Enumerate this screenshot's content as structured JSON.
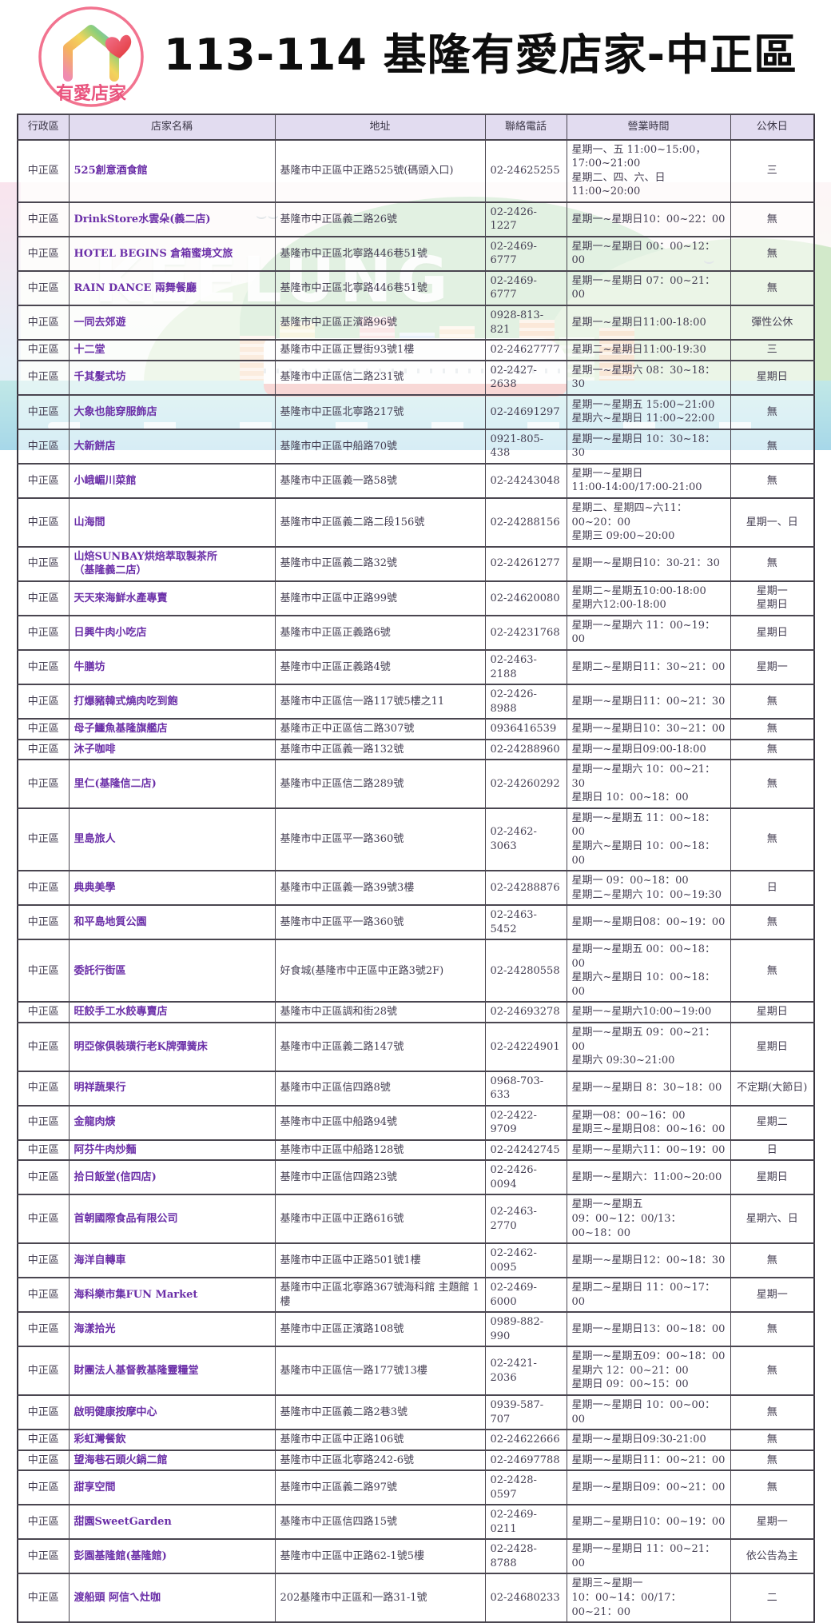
{
  "logo": {
    "text": "有愛店家"
  },
  "title": "113-114 基隆有愛店家-中正區",
  "art": {
    "watermark_text": "KEELUNG"
  },
  "colors": {
    "accent_purple": "#6b2fa8",
    "header_bg": "#e2dcf0",
    "logo_pink": "#ef5f84",
    "text_dark": "#443e52",
    "border_dark": "#4a4650"
  },
  "table": {
    "headers": [
      "行政區",
      "店家名稱",
      "地址",
      "聯絡電話",
      "營業時間",
      "公休日"
    ],
    "rows": [
      {
        "district": "中正區",
        "name": "525創意酒食館",
        "address": "基隆市中正區中正路525號(碼頭入口)",
        "phone": "02-24625255",
        "hours": "星期一、五 11:00~15:00，\n17:00~21:00\n星期二、四、六、日11:00~20:00",
        "closed": "三"
      },
      {
        "district": "中正區",
        "name": "DrinkStore水雲朵(義二店)",
        "address": "基隆市中正區義二路26號",
        "phone": "02-2426-1227",
        "hours": "星期一~星期日10：00~22：00",
        "closed": "無"
      },
      {
        "district": "中正區",
        "name": "HOTEL BEGINS 倉箱蜜境文旅",
        "address": "基隆市中正區北寧路446巷51號",
        "phone": "02-2469-6777",
        "hours": "星期一~星期日 00：00~12：00",
        "closed": "無"
      },
      {
        "district": "中正區",
        "name": "RAIN DANCE 兩舞餐廳",
        "address": "基隆市中正區北寧路446巷51號",
        "phone": "02-2469-6777",
        "hours": "星期一~星期日 07：00~21：00",
        "closed": "無"
      },
      {
        "district": "中正區",
        "name": "一同去郊遊",
        "address": "基隆市中正區正濱路96號",
        "phone": "0928-813-821",
        "hours": "星期一~星期日11:00-18:00",
        "closed": "彈性公休"
      },
      {
        "district": "中正區",
        "name": "十二堂",
        "address": "基隆市中正區正豐街93號1樓",
        "phone": "02-24627777",
        "hours": "星期二~星期日11:00-19:30",
        "closed": "三"
      },
      {
        "district": "中正區",
        "name": "千其髮式坊",
        "address": "基隆市中正區信二路231號",
        "phone": "02-2427-2638",
        "hours": "星期一~星期六 08：30~18：30",
        "closed": "星期日"
      },
      {
        "district": "中正區",
        "name": "大象也能穿服飾店",
        "address": "基隆市中正區北寧路217號",
        "phone": "02-24691297",
        "hours": "星期一~星期五 15:00~21:00\n星期六~星期日 11:00~22:00",
        "closed": "無"
      },
      {
        "district": "中正區",
        "name": "大新餅店",
        "address": "基隆市中正區中船路70號",
        "phone": "0921-805-438",
        "hours": "星期一~星期日 10：30~18：30",
        "closed": "無"
      },
      {
        "district": "中正區",
        "name": "小峨嵋川菜館",
        "address": "基隆市中正區義一路58號",
        "phone": "02-24243048",
        "hours": "星期一~星期日\n11:00-14:00/17:00-21:00",
        "closed": "無"
      },
      {
        "district": "中正區",
        "name": "山海間",
        "address": "基隆市中正區義二路二段156號",
        "phone": "02-24288156",
        "hours": "星期二、星期四~六11：00~20：00\n星期三 09:00~20:00",
        "closed": "星期一、日"
      },
      {
        "district": "中正區",
        "name": "山焙SUNBAY烘焙萃取製茶所\n（基隆義二店）",
        "address": "基隆市中正區義二路32號",
        "phone": "02-24261277",
        "hours": "星期一~星期日10：30-21：30",
        "closed": "無"
      },
      {
        "district": "中正區",
        "name": "天天來海鮮水產專賣",
        "address": "基隆市中正區中正路99號",
        "phone": "02-24620080",
        "hours": "星期二~星期五10:00-18:00\n星期六12:00-18:00",
        "closed": "星期一\n星期日"
      },
      {
        "district": "中正區",
        "name": "日興牛肉小吃店",
        "address": "基隆市中正區正義路6號",
        "phone": "02-24231768",
        "hours": "星期一~星期六 11：00~19：00",
        "closed": "星期日"
      },
      {
        "district": "中正區",
        "name": "牛膳坊",
        "address": "基隆市中正區正義路4號",
        "phone": "02-2463-2188",
        "hours": "星期二~星期日11：30~21：00",
        "closed": "星期一"
      },
      {
        "district": "中正區",
        "name": "打爆豬韓式燒肉吃到飽",
        "address": "基隆市中正區信一路117號5樓之11",
        "phone": "02-2426-8988",
        "hours": "星期一~星期日11：00~21：30",
        "closed": "無"
      },
      {
        "district": "中正區",
        "name": "母子鱷魚基隆旗艦店",
        "address": "基隆市正中正區信二路307號",
        "phone": "0936416539",
        "hours": "星期一~星期日10：30~21：00",
        "closed": "無"
      },
      {
        "district": "中正區",
        "name": "沐子咖啡",
        "address": "基隆市中正區義一路132號",
        "phone": "02-24288960",
        "hours": "星期一~星期日09:00-18:00",
        "closed": "無"
      },
      {
        "district": "中正區",
        "name": "里仁(基隆信二店)",
        "address": "基隆市中正區信二路289號",
        "phone": "02-24260292",
        "hours": "星期一~星期六 10：00~21：30\n星期日 10：00~18：00",
        "closed": "無"
      },
      {
        "district": "中正區",
        "name": "里島旅人",
        "address": "基隆市中正區平一路360號",
        "phone": "02-2462-3063",
        "hours": "星期一~星期五 11：00~18：00\n星期六~星期日 10：00~18：00",
        "closed": "無"
      },
      {
        "district": "中正區",
        "name": "典典美學",
        "address": "基隆市中正區義一路39號3樓",
        "phone": "02-24288876",
        "hours": "星期一 09：00~18：00\n星期二~星期六 10：00~19:30",
        "closed": "日"
      },
      {
        "district": "中正區",
        "name": "和平島地質公園",
        "address": "基隆市中正區平一路360號",
        "phone": "02-2463-5452",
        "hours": "星期一~星期日08：00~19：00",
        "closed": "無"
      },
      {
        "district": "中正區",
        "name": "委託行街區",
        "address": "好食城(基隆市中正區中正路3號2F)",
        "phone": "02-24280558",
        "hours": "星期一~星期五 00：00~18：00\n星期六~星期日 10：00~18：00",
        "closed": "無"
      },
      {
        "district": "中正區",
        "name": "旺餃手工水餃專賣店",
        "address": "基隆市中正區調和街28號",
        "phone": "02-24693278",
        "hours": "星期一~星期六10:00~19:00",
        "closed": "星期日"
      },
      {
        "district": "中正區",
        "name": "明亞傢俱裝璜行老K牌彈簧床",
        "address": "基隆市中正區義二路147號",
        "phone": "02-24224901",
        "hours": "星期一~星期五 09：00~21：00\n星期六 09:30~21:00",
        "closed": "星期日"
      },
      {
        "district": "中正區",
        "name": "明祥蔬果行",
        "address": "基隆市中正區信四路8號",
        "phone": "0968-703-633",
        "hours": "星期一~星期日 8：30~18：00",
        "closed": "不定期(大節日)"
      },
      {
        "district": "中正區",
        "name": "金龍肉焿",
        "address": "基隆市中正區中船路94號",
        "phone": "02-2422-9709",
        "hours": "星期一08：00~16：00\n星期三~星期日08：00~16：00",
        "closed": "星期二"
      },
      {
        "district": "中正區",
        "name": "阿芬牛肉炒麵",
        "address": "基隆市中正區中船路128號",
        "phone": "02-24242745",
        "hours": "星期一~星期六11：00~19：00",
        "closed": "日"
      },
      {
        "district": "中正區",
        "name": "拾日飯堂(信四店)",
        "address": "基隆市中正區信四路23號",
        "phone": "02-2426-0094",
        "hours": "星期一~星期六：11:00~20:00",
        "closed": "星期日"
      },
      {
        "district": "中正區",
        "name": "首朝國際食品有限公司",
        "address": "基隆市中正區中正路616號",
        "phone": "02-2463-2770",
        "hours": "星期一~星期五\n09：00~12：00/13：00~18：00",
        "closed": "星期六、日"
      },
      {
        "district": "中正區",
        "name": "海洋自轉車",
        "address": "基隆市中正區中正路501號1樓",
        "phone": "02-2462-0095",
        "hours": "星期一~星期日12：00~18：30",
        "closed": "無"
      },
      {
        "district": "中正區",
        "name": "海科樂市集FUN Market",
        "address": "基隆市中正區北寧路367號海科館 主題館 1樓",
        "phone": "02-2469-6000",
        "hours": "星期二~星期日 11：00~17：00",
        "closed": "星期一"
      },
      {
        "district": "中正區",
        "name": "海漾拾光",
        "address": "基隆市中正區正濱路108號",
        "phone": "0989-882-990",
        "hours": "星期一~星期日13：00~18：00",
        "closed": "無"
      },
      {
        "district": "中正區",
        "name": "財團法人基督教基隆靈糧堂",
        "address": "基隆市中正區信一路177號13樓",
        "phone": "02-2421-2036",
        "hours": "星期一~星期五09：00~18：00\n星期六 12：00~21：00\n星期日 09：00~15：00",
        "closed": "無"
      },
      {
        "district": "中正區",
        "name": "啟明健康按摩中心",
        "address": "基隆市中正區義二路2巷3號",
        "phone": "0939-587-707",
        "hours": "星期一~星期日 10：00~00：00",
        "closed": "無"
      },
      {
        "district": "中正區",
        "name": "彩虹灣餐飲",
        "address": "基隆市中正區中正路106號",
        "phone": "02-24622666",
        "hours": "星期一~星期日09:30-21:00",
        "closed": "無"
      },
      {
        "district": "中正區",
        "name": "望海巷石頭火鍋二館",
        "address": "基隆市中正區北寧路242-6號",
        "phone": "02-24697788",
        "hours": "星期一~星期日11：00~21：00",
        "closed": "無"
      },
      {
        "district": "中正區",
        "name": "甜享空間",
        "address": "基隆市中正區義二路97號",
        "phone": "02-2428-0597",
        "hours": "星期一~星期日09：00~21：00",
        "closed": "無"
      },
      {
        "district": "中正區",
        "name": "甜園SweetGarden",
        "address": "基隆市中正區信四路15號",
        "phone": "02-2469-0211",
        "hours": "星期二~星期日10：00~19：00",
        "closed": "星期一"
      },
      {
        "district": "中正區",
        "name": "彭園基隆館(基隆館)",
        "address": "基隆市中正區中正路62-1號5樓",
        "phone": "02-2428-8788",
        "hours": "星期一~星期日 11：00~21：00",
        "closed": "依公告為主"
      },
      {
        "district": "中正區",
        "name": "渡船頭 阿信ㄟ灶咖",
        "address": "202基隆市中正區和一路31-1號",
        "phone": "02-24680233",
        "hours": "星期三~星期一\n10：00~14：00/17：00~21：00",
        "closed": "二"
      }
    ]
  }
}
